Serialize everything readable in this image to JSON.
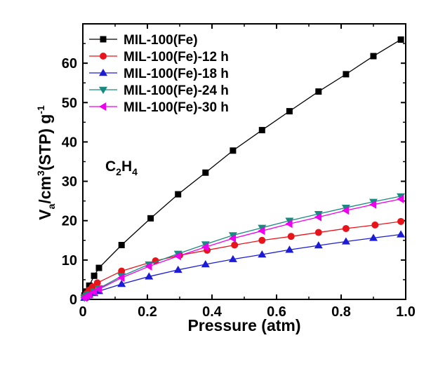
{
  "chart_data": {
    "type": "line",
    "xlabel": "Pressure (atm)",
    "ylabel": {
      "v": "V",
      "sub": "a",
      "mid": "/cm",
      "sup": "3",
      "rest": "(STP) g",
      "sup2": "-1"
    },
    "annotation": {
      "base": "C",
      "sub1": "2",
      "mid": "H",
      "sub2": "4"
    },
    "xlim": [
      0.0,
      1.0
    ],
    "ylim": [
      0,
      70
    ],
    "xticks": [
      "0",
      "0.2",
      "0.4",
      "0.6",
      "0.8",
      "1.0"
    ],
    "yticks": [
      "0",
      "10",
      "20",
      "30",
      "40",
      "50",
      "60"
    ],
    "legend_position": "top-left",
    "series": [
      {
        "name": "MIL-100(Fe)",
        "color": "#000000",
        "marker": "square",
        "x": [
          0.005,
          0.012,
          0.02,
          0.035,
          0.05,
          0.12,
          0.21,
          0.295,
          0.38,
          0.465,
          0.555,
          0.64,
          0.73,
          0.815,
          0.9,
          0.985
        ],
        "y": [
          1.0,
          2.0,
          3.5,
          6.0,
          8.0,
          13.8,
          20.6,
          26.7,
          32.2,
          37.8,
          43.0,
          47.8,
          52.8,
          57.2,
          61.8,
          66.0
        ]
      },
      {
        "name": "MIL-100(Fe)-12 h",
        "color": "#e8141b",
        "marker": "circle",
        "x": [
          0.005,
          0.012,
          0.02,
          0.03,
          0.045,
          0.12,
          0.225,
          0.3,
          0.385,
          0.47,
          0.555,
          0.645,
          0.73,
          0.815,
          0.905,
          0.985
        ],
        "y": [
          0.7,
          1.5,
          2.4,
          3.2,
          4.2,
          7.2,
          9.8,
          11.2,
          12.5,
          13.8,
          15.0,
          16.0,
          17.0,
          18.0,
          18.9,
          19.8
        ]
      },
      {
        "name": "MIL-100(Fe)-18 h",
        "color": "#1c1cd6",
        "marker": "triangle-up",
        "x": [
          0.005,
          0.012,
          0.02,
          0.035,
          0.05,
          0.12,
          0.205,
          0.295,
          0.38,
          0.465,
          0.555,
          0.64,
          0.73,
          0.815,
          0.9,
          0.985
        ],
        "y": [
          0.4,
          0.8,
          1.2,
          1.6,
          2.1,
          3.9,
          5.8,
          7.5,
          8.9,
          10.2,
          11.4,
          12.6,
          13.7,
          14.7,
          15.6,
          16.5
        ]
      },
      {
        "name": "MIL-100(Fe)-24 h",
        "color": "#1a8a80",
        "marker": "triangle-down",
        "x": [
          0.005,
          0.012,
          0.02,
          0.035,
          0.05,
          0.12,
          0.205,
          0.295,
          0.38,
          0.465,
          0.555,
          0.64,
          0.73,
          0.815,
          0.9,
          0.985
        ],
        "y": [
          0.4,
          0.9,
          1.3,
          2.0,
          2.8,
          5.9,
          8.9,
          11.6,
          14.0,
          16.3,
          18.2,
          20.0,
          21.7,
          23.3,
          24.8,
          26.2
        ]
      },
      {
        "name": "MIL-100(Fe)-30 h",
        "color": "#ee00ee",
        "marker": "triangle-left",
        "x": [
          0.005,
          0.012,
          0.02,
          0.035,
          0.05,
          0.12,
          0.205,
          0.295,
          0.38,
          0.465,
          0.555,
          0.64,
          0.73,
          0.815,
          0.9,
          0.985
        ],
        "y": [
          0.4,
          0.8,
          1.2,
          1.9,
          2.6,
          5.5,
          8.4,
          11.0,
          13.3,
          15.5,
          17.4,
          19.2,
          20.9,
          22.6,
          24.1,
          25.5
        ]
      }
    ]
  }
}
